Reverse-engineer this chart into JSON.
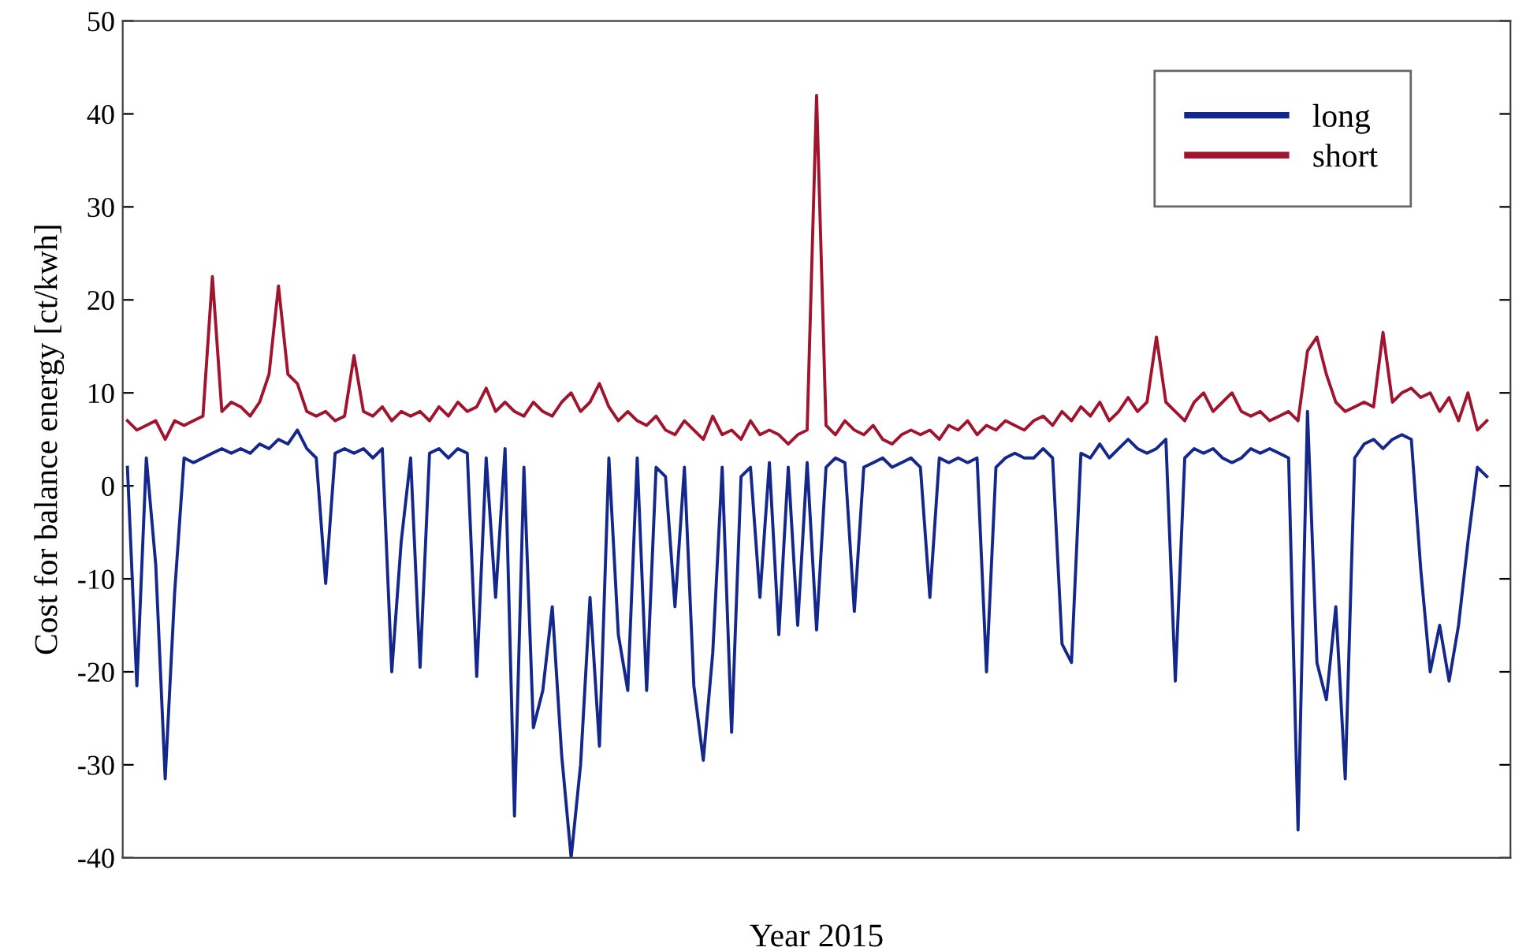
{
  "chart_data": {
    "type": "line",
    "xlabel": "Year 2015",
    "ylabel": "Cost for balance energy [ct/kwh]",
    "categories": [
      null,
      null,
      null,
      null,
      null,
      null,
      null,
      null,
      null,
      null,
      null,
      null,
      null,
      null,
      null,
      null,
      null,
      null,
      null,
      null,
      null,
      null,
      null,
      null,
      null,
      null,
      null,
      null,
      null,
      null,
      null,
      null,
      null,
      null,
      null,
      null,
      null,
      null,
      null,
      null,
      null,
      null,
      null,
      null,
      null,
      null,
      null,
      null,
      null,
      null,
      null,
      null,
      null,
      null,
      null,
      null,
      null,
      null,
      null,
      null,
      null,
      null,
      null,
      null,
      null,
      null,
      null,
      null,
      null,
      null,
      null,
      null,
      null,
      null,
      null,
      null,
      null,
      null,
      null,
      null,
      null,
      null,
      null,
      null,
      null,
      null,
      null,
      null,
      null,
      null,
      null,
      null,
      null,
      null,
      null,
      null,
      null,
      null,
      null,
      null,
      null,
      null,
      null,
      null,
      null,
      null,
      null,
      null,
      null,
      null,
      null,
      null,
      null,
      null,
      null,
      null,
      null,
      null,
      null,
      null,
      null,
      null,
      null,
      null,
      null,
      null,
      null,
      null,
      null,
      null,
      null,
      null,
      null,
      null,
      null,
      null,
      null,
      null,
      null,
      null,
      null,
      null,
      null,
      null,
      null
    ],
    "series": [
      {
        "name": "long",
        "color": "#14288c",
        "values": [
          2,
          -21.5,
          3,
          -8.5,
          -31.5,
          -11.5,
          3,
          2.5,
          3,
          3.5,
          4,
          3.5,
          4,
          3.5,
          4.5,
          4,
          5,
          4.5,
          6,
          4,
          3,
          -10.5,
          3.5,
          4,
          3.5,
          4,
          3,
          4,
          -20,
          -6,
          3,
          -19.5,
          3.5,
          4,
          3,
          4,
          3.5,
          -20.5,
          3,
          -12,
          4,
          -35.5,
          2,
          -26,
          -22,
          -13,
          -29,
          -40,
          -30,
          -12,
          -28,
          3,
          -16,
          -22,
          3,
          -22,
          2,
          1,
          -13,
          2,
          -21.5,
          -29.5,
          -18,
          2,
          -26.5,
          1,
          2,
          -12,
          2.5,
          -16,
          2,
          -15,
          2.5,
          -15.5,
          2,
          3,
          2.5,
          -13.5,
          2,
          2.5,
          3,
          2,
          2.5,
          3,
          2,
          -12,
          3,
          2.5,
          3,
          2.5,
          3,
          -20,
          2,
          3,
          3.5,
          3,
          3,
          4,
          3,
          -17,
          -19,
          3.5,
          3,
          4.5,
          3,
          4,
          5,
          4,
          3.5,
          4,
          5,
          -21,
          3,
          4,
          3.5,
          4,
          3,
          2.5,
          3,
          4,
          3.5,
          4,
          3.5,
          3,
          -37,
          8,
          -19,
          -23,
          -13,
          -31.5,
          3,
          4.5,
          5,
          4,
          5,
          5.5,
          5,
          -9,
          -20,
          -15,
          -21,
          -15,
          -6,
          2,
          1
        ]
      },
      {
        "name": "short",
        "color": "#a0142d",
        "values": [
          7,
          6,
          6.5,
          7,
          5,
          7,
          6.5,
          7,
          7.5,
          22.5,
          8,
          9,
          8.5,
          7.5,
          9,
          12,
          21.5,
          12,
          11,
          8,
          7.5,
          8,
          7,
          7.5,
          14,
          8,
          7.5,
          8.5,
          7,
          8,
          7.5,
          8,
          7,
          8.5,
          7.5,
          9,
          8,
          8.5,
          10.5,
          8,
          9,
          8,
          7.5,
          9,
          8,
          7.5,
          9,
          10,
          8,
          9,
          11,
          8.5,
          7,
          8,
          7,
          6.5,
          7.5,
          6,
          5.5,
          7,
          6,
          5,
          7.5,
          5.5,
          6,
          5,
          7,
          5.5,
          6,
          5.5,
          4.5,
          5.5,
          6,
          42,
          6.5,
          5.5,
          7,
          6,
          5.5,
          6.5,
          5,
          4.5,
          5.5,
          6,
          5.5,
          6,
          5,
          6.5,
          6,
          7,
          5.5,
          6.5,
          6,
          7,
          6.5,
          6,
          7,
          7.5,
          6.5,
          8,
          7,
          8.5,
          7.5,
          9,
          7,
          8,
          9.5,
          8,
          9,
          16,
          9,
          8,
          7,
          9,
          10,
          8,
          9,
          10,
          8,
          7.5,
          8,
          7,
          7.5,
          8,
          7,
          14.5,
          16,
          12,
          9,
          8,
          8.5,
          9,
          8.5,
          16.5,
          9,
          10,
          10.5,
          9.5,
          10,
          8,
          9.5,
          7,
          10,
          6,
          7
        ]
      }
    ],
    "ylim": [
      -40,
      50
    ],
    "yticks": [
      -40,
      -30,
      -20,
      -10,
      0,
      10,
      20,
      30,
      40,
      50
    ],
    "tick_labels": "y",
    "legend": "top right",
    "grid": false,
    "line_style": "solid",
    "marker": "none"
  }
}
